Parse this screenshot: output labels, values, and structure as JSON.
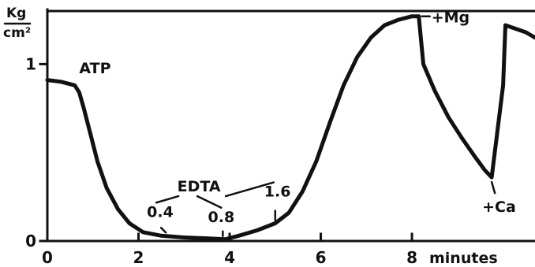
{
  "chart_data": {
    "type": "line",
    "title": "",
    "xlabel": "minutes",
    "ylabel": {
      "numerator": "Kg",
      "denominator": "cm²"
    },
    "xlim": [
      0,
      10.7
    ],
    "ylim": [
      0,
      1.3
    ],
    "x_ticks": [
      {
        "value": 0,
        "label": "0"
      },
      {
        "value": 2,
        "label": "2"
      },
      {
        "value": 4,
        "label": "4"
      },
      {
        "value": 6,
        "label": "6"
      },
      {
        "value": 8,
        "label": "8"
      }
    ],
    "y_ticks": [
      {
        "value": 0,
        "label": "0"
      },
      {
        "value": 1,
        "label": "1"
      }
    ],
    "grid": false,
    "legend": "none",
    "series": [
      {
        "segments": [
          {
            "x": [
              0,
              0.3,
              0.6,
              0.7,
              0.8,
              0.95,
              1.1,
              1.3,
              1.55,
              1.8,
              2.1,
              2.5,
              3.0,
              3.5,
              3.9,
              4.2,
              4.6,
              5.0,
              5.3,
              5.6,
              5.9,
              6.2,
              6.5,
              6.8,
              7.1,
              7.4,
              7.7,
              8.0,
              8.15
            ],
            "y": [
              0.91,
              0.9,
              0.88,
              0.84,
              0.75,
              0.6,
              0.45,
              0.3,
              0.18,
              0.1,
              0.05,
              0.03,
              0.02,
              0.015,
              0.01,
              0.03,
              0.06,
              0.1,
              0.16,
              0.28,
              0.45,
              0.67,
              0.88,
              1.04,
              1.15,
              1.22,
              1.25,
              1.27,
              1.27
            ]
          },
          {
            "x": [
              8.15,
              8.25,
              8.5,
              8.8,
              9.1,
              9.4,
              9.6,
              9.75
            ],
            "y": [
              1.27,
              1.0,
              0.85,
              0.7,
              0.58,
              0.47,
              0.4,
              0.36
            ]
          },
          {
            "x": [
              9.75,
              10.0,
              10.05,
              10.5,
              10.7
            ],
            "y": [
              0.36,
              0.88,
              1.22,
              1.18,
              1.15
            ]
          }
        ]
      }
    ],
    "annotations": [
      {
        "text": "ATP",
        "x": 0.7,
        "y": 0.86
      },
      {
        "text": "+Mg",
        "x": 8.15,
        "y": 1.27
      },
      {
        "text": "+Ca",
        "x": 9.75,
        "y": 0.36
      },
      {
        "text": "EDTA",
        "x": 3.5,
        "y": 0.28
      },
      {
        "text": "0.4",
        "x": 2.6,
        "y": 0.03
      },
      {
        "text": "0.8",
        "x": 3.85,
        "y": 0.01
      },
      {
        "text": "1.6",
        "x": 5.0,
        "y": 0.1
      }
    ]
  }
}
